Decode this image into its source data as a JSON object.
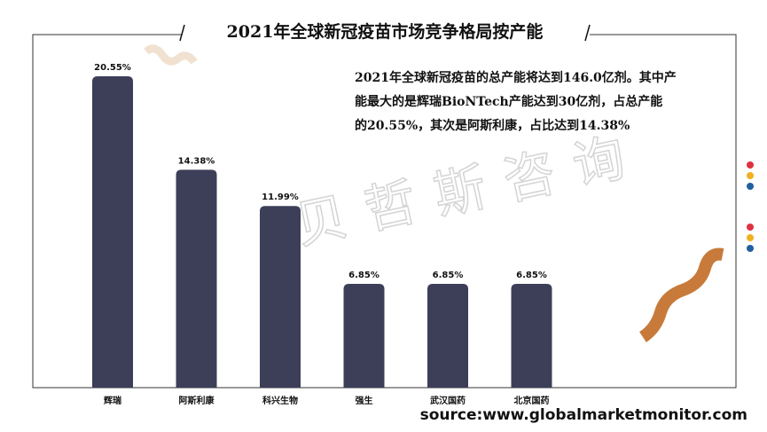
{
  "chart_data": {
    "type": "bar",
    "title": "2021年全球新冠疫苗市场竞争格局按产能",
    "categories": [
      "辉瑞",
      "阿斯利康",
      "科兴生物",
      "强生",
      "武汉国药",
      "北京国药"
    ],
    "values": [
      20.55,
      14.38,
      11.99,
      6.85,
      6.85,
      6.85
    ],
    "value_labels": [
      "20.55%",
      "14.38%",
      "11.99%",
      "6.85%",
      "6.85%",
      "6.85%"
    ],
    "color": "#3d3f58",
    "annotation": [
      "2021年全球新冠疫苗的总产能将达到146.0亿剂。其中产",
      "能最大的是辉瑞BioNTech产能达到30亿剂，占总产能",
      "的20.55%，其次是阿斯利康，占比达到14.38%"
    ],
    "watermark": "贝哲斯咨询",
    "source": "source:www.globalmarketmonitor.com"
  }
}
